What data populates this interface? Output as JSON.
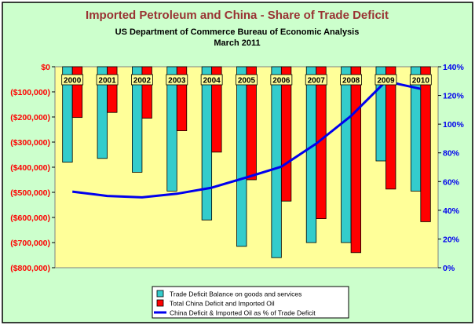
{
  "chart_data": {
    "type": "bar",
    "title": "Imported Petroleum  and China - Share of Trade Deficit",
    "subtitle_line1": "US Department of Commerce Bureau of Economic Analysis",
    "subtitle_line2": "March 2011",
    "categories": [
      "2000",
      "2001",
      "2002",
      "2003",
      "2004",
      "2005",
      "2006",
      "2007",
      "2008",
      "2009",
      "2010"
    ],
    "y_left": {
      "range": [
        -800000,
        0
      ],
      "ticks": [
        0,
        -100000,
        -200000,
        -300000,
        -400000,
        -500000,
        -600000,
        -700000,
        -800000
      ],
      "tick_labels": [
        "$0",
        "($100,000)",
        "($200,000)",
        "($300,000)",
        "($400,000)",
        "($500,000)",
        "($600,000)",
        "($700,000)",
        "($800,000)"
      ]
    },
    "y_right": {
      "range": [
        0,
        140
      ],
      "ticks": [
        0,
        20,
        40,
        60,
        80,
        100,
        120,
        140
      ],
      "tick_labels": [
        "0%",
        "20%",
        "40%",
        "60%",
        "80%",
        "100%",
        "120%",
        "140%"
      ]
    },
    "series": [
      {
        "name": "Trade Deficit Balance on goods and services",
        "type": "bar",
        "color": "#33cccc",
        "values": [
          -380000,
          -365000,
          -420000,
          -495000,
          -610000,
          -715000,
          -760000,
          -700000,
          -700000,
          -375000,
          -495000
        ]
      },
      {
        "name": "Total China Deficit and Imported Oil",
        "type": "bar",
        "color": "#ff0000",
        "values": [
          -202000,
          -182000,
          -205000,
          -255000,
          -340000,
          -450000,
          -535000,
          -605000,
          -740000,
          -487000,
          -617000
        ]
      },
      {
        "name": "China Deficit & Imported Oil as % of Trade Deficit",
        "type": "line",
        "axis": "right",
        "color": "#0000ee",
        "values": [
          53,
          50,
          49,
          51.5,
          55.7,
          62.9,
          70.4,
          86.4,
          105.7,
          129.9,
          124.6
        ]
      }
    ],
    "grid": false,
    "legend_position": "bottom-center",
    "colors": {
      "plot_background": "#ffff99",
      "chart_background": "#ccffcc",
      "title_color": "#993333",
      "left_axis_label_color": "#ff0000",
      "right_axis_label_color": "#0000ee"
    }
  }
}
